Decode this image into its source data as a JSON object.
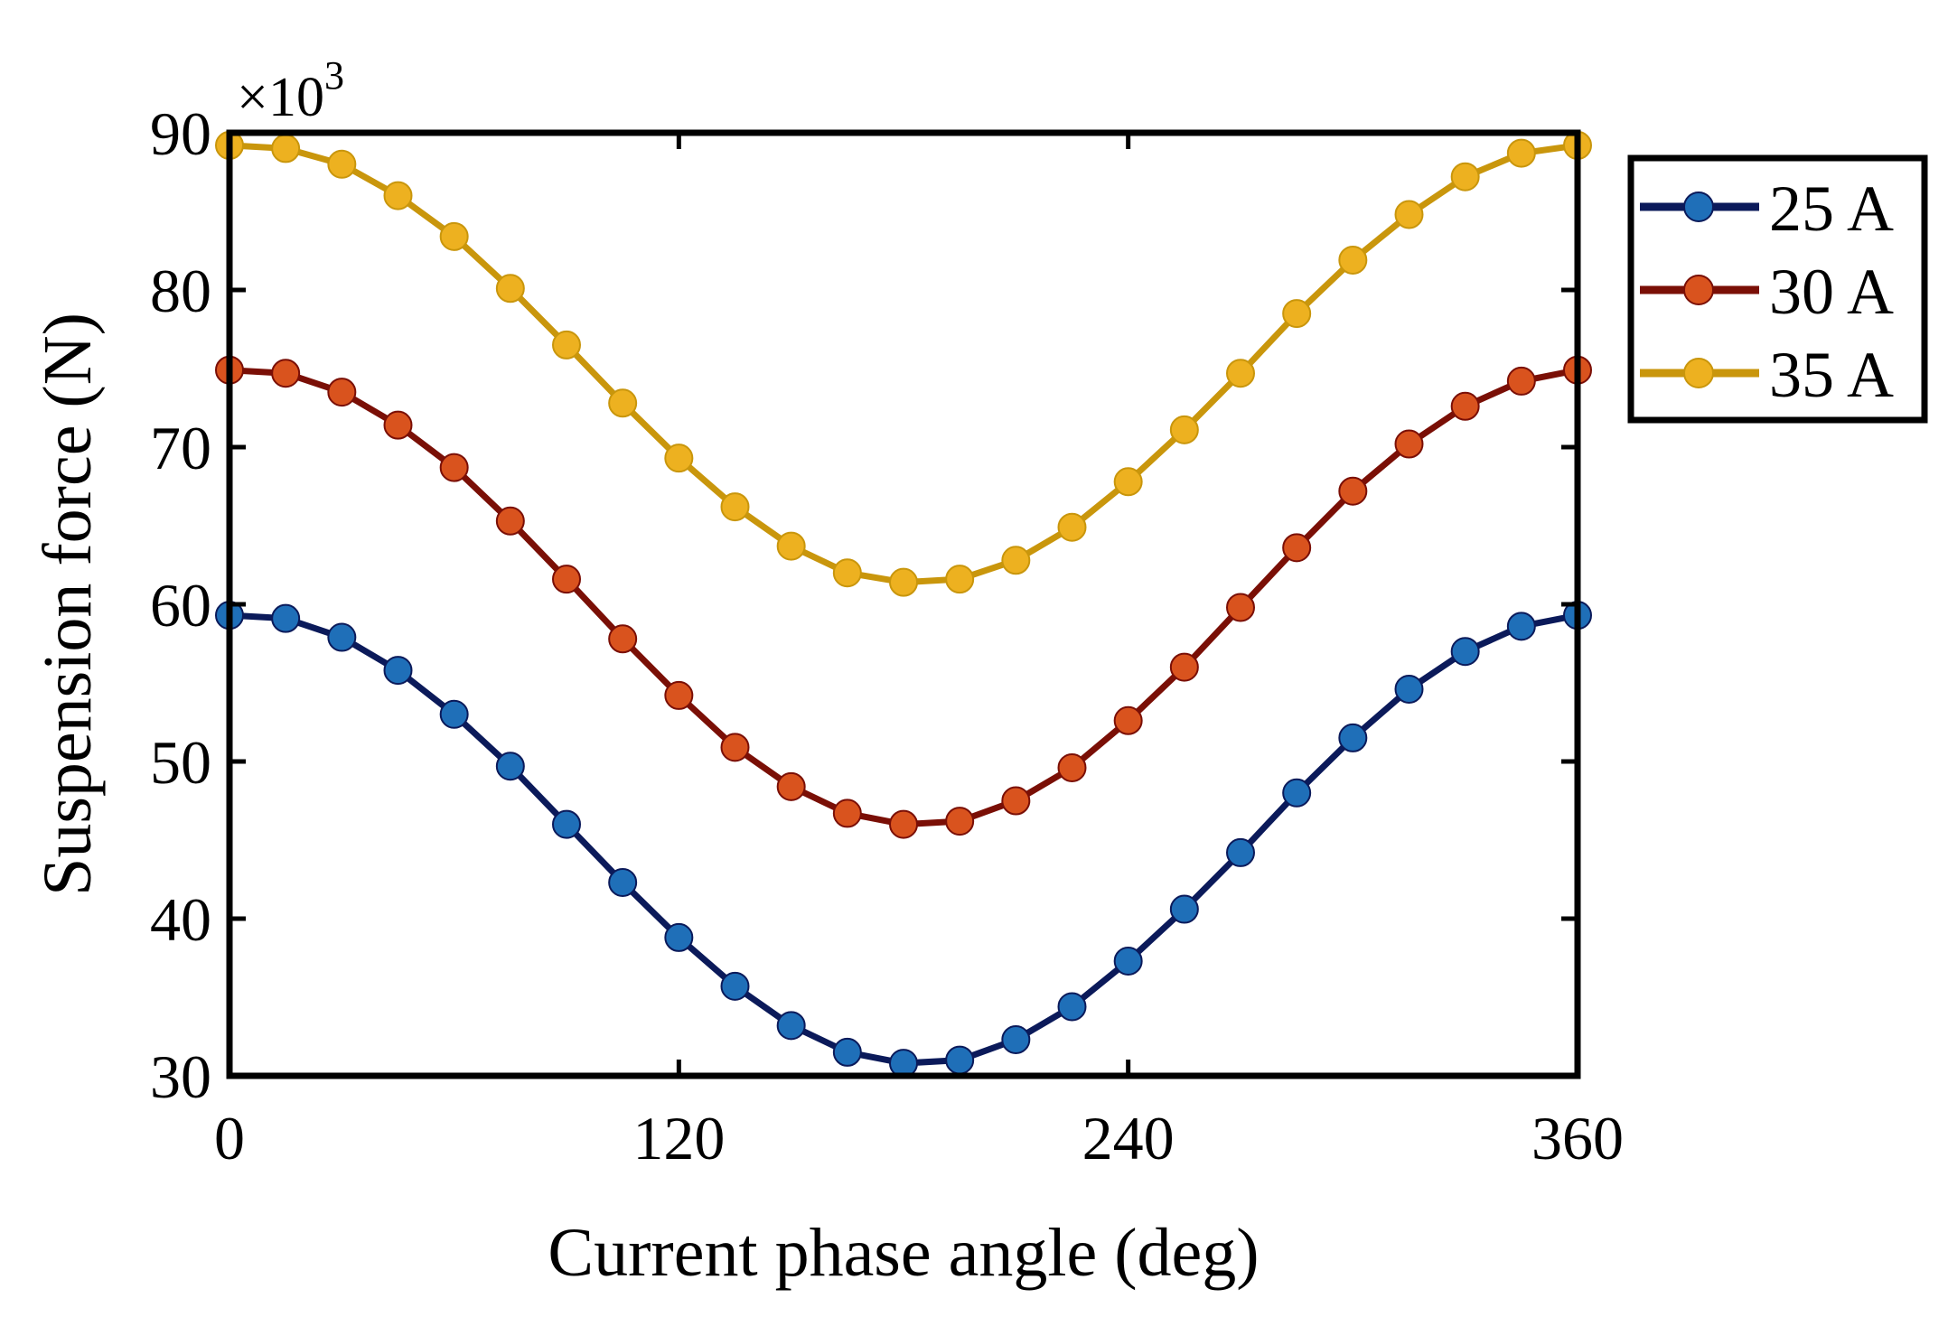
{
  "chart_data": {
    "type": "line",
    "title": "",
    "xlabel": "Current phase angle (deg)",
    "ylabel": "Suspension force (N)",
    "y_multiplier_label": "×10",
    "y_multiplier_exponent": "3",
    "xlim": [
      0,
      360
    ],
    "ylim": [
      30,
      90
    ],
    "xticks": [
      0,
      120,
      240,
      360
    ],
    "xtick_labels": [
      "0",
      "120",
      "240",
      "360"
    ],
    "yticks": [
      30,
      40,
      50,
      60,
      70,
      80,
      90
    ],
    "ytick_labels": [
      "30",
      "40",
      "50",
      "60",
      "70",
      "80",
      "90"
    ],
    "grid": false,
    "legend_position": "outside-right-top",
    "x": [
      0,
      15,
      30,
      45,
      60,
      75,
      90,
      105,
      120,
      135,
      150,
      165,
      180,
      195,
      210,
      225,
      240,
      255,
      270,
      285,
      300,
      315,
      330,
      345,
      360
    ],
    "series": [
      {
        "name": "25 A",
        "line_color": "#0b1a5a",
        "marker_color": "#1f6fb8",
        "values": [
          59.3,
          59.1,
          57.9,
          55.8,
          53.0,
          49.7,
          46.0,
          42.3,
          38.8,
          35.7,
          33.2,
          31.5,
          30.8,
          31.0,
          32.3,
          34.4,
          37.3,
          40.6,
          44.2,
          48.0,
          51.5,
          54.6,
          57.0,
          58.6,
          59.3
        ]
      },
      {
        "name": "30 A",
        "line_color": "#7a0f06",
        "marker_color": "#d9531e",
        "values": [
          74.9,
          74.7,
          73.5,
          71.4,
          68.7,
          65.3,
          61.6,
          57.8,
          54.2,
          50.9,
          48.4,
          46.7,
          46.0,
          46.2,
          47.5,
          49.6,
          52.6,
          56.0,
          59.8,
          63.6,
          67.2,
          70.2,
          72.6,
          74.2,
          74.9
        ]
      },
      {
        "name": "35 A",
        "line_color": "#c9960c",
        "marker_color": "#edb120",
        "values": [
          89.2,
          89.0,
          88.0,
          86.0,
          83.4,
          80.1,
          76.5,
          72.8,
          69.3,
          66.2,
          63.7,
          62.0,
          61.4,
          61.6,
          62.8,
          64.9,
          67.8,
          71.1,
          74.7,
          78.5,
          81.9,
          84.8,
          87.2,
          88.7,
          89.2
        ]
      }
    ]
  }
}
